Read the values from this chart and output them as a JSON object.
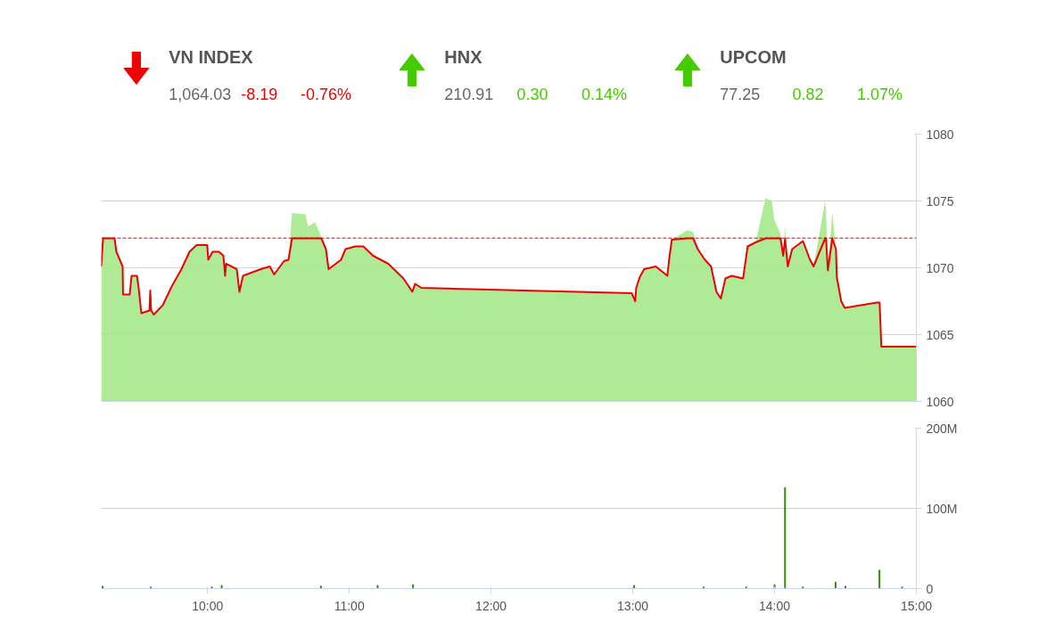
{
  "chart_data": [
    {
      "type": "other",
      "categories": [
        "VN INDEX",
        "HNX",
        "UPCOM"
      ],
      "values": [
        -8.19,
        0.3,
        0.82
      ],
      "value_labels": [
        "-8.19",
        "0.30",
        "0.82"
      ],
      "colors": [
        "#f00000",
        "#44cc00",
        "#44cc00"
      ],
      "annotations": [
        "1,064.03",
        "-0.76%",
        "210.91",
        "0.14%",
        "77.25",
        "1.07%"
      ]
    },
    {
      "type": "area",
      "x": [
        9.25,
        9.263,
        9.344,
        9.357,
        9.401,
        9.404,
        9.451,
        9.464,
        9.502,
        9.514,
        9.533,
        9.59,
        9.596,
        9.602,
        9.621,
        9.684,
        9.747,
        9.816,
        9.873,
        9.923,
        9.998,
        10.005,
        10.036,
        10.08,
        10.112,
        10.124,
        10.131,
        10.206,
        10.225,
        10.25,
        10.376,
        10.439,
        10.47,
        10.539,
        10.571,
        10.596,
        10.69,
        10.709,
        10.759,
        10.803,
        10.835,
        10.854,
        10.942,
        10.973,
        11.042,
        11.099,
        11.168,
        11.275,
        11.382,
        11.445,
        11.464,
        11.508,
        12.992,
        13.017,
        13.024,
        13.049,
        13.08,
        13.162,
        13.244,
        13.256,
        13.275,
        13.382,
        13.426,
        13.458,
        13.508,
        13.552,
        13.59,
        13.621,
        13.653,
        13.697,
        13.778,
        13.81,
        13.866,
        13.936,
        13.98,
        13.998,
        14.042,
        14.061,
        14.074,
        14.093,
        14.124,
        14.2,
        14.25,
        14.275,
        14.357,
        14.363,
        14.376,
        14.407,
        14.433,
        14.439,
        14.47,
        14.495,
        14.722,
        14.741,
        14.753,
        15.0
      ],
      "series": [
        {
          "type": "area",
          "color": "#a6e88c",
          "values": [
            1070.1,
            1072.3,
            1072.2,
            1071.2,
            1070.1,
            1068.0,
            1068.0,
            1069.4,
            1069.4,
            1068.5,
            1066.6,
            1066.8,
            1068.3,
            1066.8,
            1066.5,
            1067.2,
            1068.6,
            1069.9,
            1071.2,
            1071.7,
            1071.7,
            1070.6,
            1071.2,
            1071.2,
            1070.9,
            1069.4,
            1070.3,
            1069.9,
            1068.2,
            1069.4,
            1069.9,
            1070.1,
            1069.5,
            1070.5,
            1070.6,
            1074.1,
            1074.0,
            1073.1,
            1073.4,
            1072.3,
            1071.4,
            1069.9,
            1070.6,
            1071.4,
            1071.6,
            1071.6,
            1070.9,
            1070.3,
            1069.2,
            1068.2,
            1068.8,
            1068.5,
            1068.1,
            1067.5,
            1068.5,
            1069.3,
            1069.9,
            1070.1,
            1069.4,
            1070.6,
            1072.1,
            1072.8,
            1072.7,
            1071.4,
            1070.6,
            1070.1,
            1068.2,
            1067.7,
            1069.2,
            1069.4,
            1069.2,
            1071.6,
            1071.9,
            1075.2,
            1075.0,
            1073.6,
            1072.5,
            1070.9,
            1073.1,
            1070.1,
            1071.4,
            1072.0,
            1070.6,
            1070.1,
            1075.0,
            1074.1,
            1069.8,
            1074.1,
            1071.4,
            1069.3,
            1067.5,
            1067.0,
            1067.4,
            1067.4,
            1064.1,
            1064.1
          ]
        },
        {
          "type": "line",
          "color": "#f00000",
          "values": [
            1070.1,
            1072.2,
            1072.2,
            1071.2,
            1070.1,
            1068.0,
            1068.0,
            1069.4,
            1069.4,
            1068.5,
            1066.6,
            1066.8,
            1068.3,
            1066.8,
            1066.5,
            1067.2,
            1068.6,
            1069.9,
            1071.2,
            1071.7,
            1071.7,
            1070.6,
            1071.2,
            1071.2,
            1070.9,
            1069.4,
            1070.3,
            1069.9,
            1068.2,
            1069.4,
            1069.9,
            1070.1,
            1069.5,
            1070.5,
            1070.6,
            1072.2,
            1072.2,
            1072.2,
            1072.2,
            1072.2,
            1071.4,
            1069.9,
            1070.6,
            1071.4,
            1071.6,
            1071.6,
            1070.9,
            1070.3,
            1069.2,
            1068.2,
            1068.8,
            1068.5,
            1068.1,
            1067.5,
            1068.5,
            1069.3,
            1069.9,
            1070.1,
            1069.4,
            1070.6,
            1072.1,
            1072.2,
            1072.2,
            1071.4,
            1070.6,
            1070.1,
            1068.2,
            1067.7,
            1069.2,
            1069.4,
            1069.2,
            1071.6,
            1071.9,
            1072.2,
            1072.2,
            1072.2,
            1072.2,
            1070.9,
            1072.2,
            1070.1,
            1071.4,
            1072.0,
            1070.6,
            1070.1,
            1072.2,
            1072.2,
            1069.8,
            1072.2,
            1071.4,
            1069.3,
            1067.5,
            1067.0,
            1067.4,
            1067.4,
            1064.1,
            1064.1
          ]
        }
      ],
      "xlim": [
        9.25,
        15
      ],
      "ylim": [
        1060,
        1080
      ],
      "yticks": [
        1060,
        1065,
        1070,
        1075,
        1080
      ],
      "ref_lines": [
        {
          "axis": "y",
          "value": 1072.22,
          "color": "#e00000",
          "line_style": "dashed"
        }
      ],
      "grid": "y",
      "tick_labels": "y"
    },
    {
      "type": "bar",
      "x": [
        9.26,
        9.6,
        10.03,
        10.1,
        10.8,
        11.2,
        11.45,
        13.01,
        13.5,
        13.8,
        14.0,
        14.074,
        14.2,
        14.43,
        14.5,
        14.74,
        14.9
      ],
      "values": [
        3,
        2,
        2,
        4,
        3,
        4,
        5,
        4,
        2,
        2,
        5,
        126,
        2,
        8,
        3,
        23,
        2
      ],
      "color": "#2e8b00",
      "xlim": [
        9.25,
        15
      ],
      "xticks": [
        {
          "value": 10,
          "label": "10:00"
        },
        {
          "value": 11,
          "label": "11:00"
        },
        {
          "value": 12,
          "label": "12:00"
        },
        {
          "value": 13,
          "label": "13:00"
        },
        {
          "value": 14,
          "label": "14:00"
        },
        {
          "value": 15,
          "label": "15:00"
        }
      ],
      "ylim": [
        0,
        200
      ],
      "yticks": [
        {
          "value": 0,
          "label": "0"
        },
        {
          "value": 100,
          "label": "100M"
        },
        {
          "value": 200,
          "label": "200M"
        }
      ],
      "grid": "y"
    }
  ]
}
